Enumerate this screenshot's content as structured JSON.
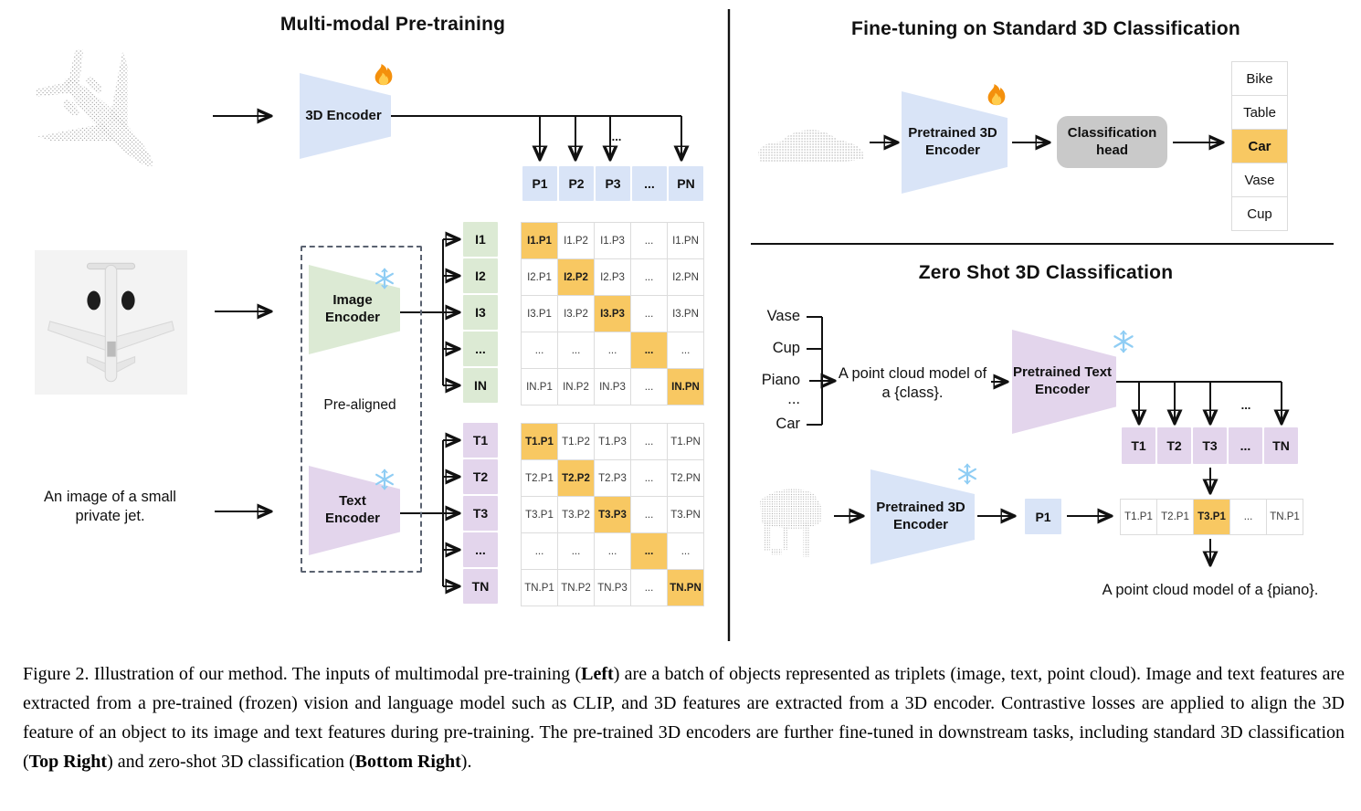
{
  "colors": {
    "blue": "#d9e4f7",
    "green": "#dcead4",
    "purple": "#e3d5ec",
    "orange": "#f8c862",
    "gray": "#c9c9c9",
    "cellborder": "#dcdcdc"
  },
  "left": {
    "title": "Multi-modal Pre-training",
    "encoder_3d_label": "3D Encoder",
    "image_encoder_l1": "Image",
    "image_encoder_l2": "Encoder",
    "text_encoder_l1": "Text",
    "text_encoder_l2": "Encoder",
    "prealigned": "Pre-aligned",
    "jet_caption_l1": "An image of a small",
    "jet_caption_l2": "private jet.",
    "ellipsis": "...",
    "p_row": [
      "P1",
      "P2",
      "P3",
      "...",
      "PN"
    ],
    "i_col": [
      "I1",
      "I2",
      "I3",
      "...",
      "IN"
    ],
    "t_col": [
      "T1",
      "T2",
      "T3",
      "...",
      "TN"
    ],
    "i_matrix": [
      [
        {
          "t": "I1.P1",
          "hl": true
        },
        "I1.P2",
        "I1.P3",
        "...",
        "I1.PN"
      ],
      [
        "I2.P1",
        {
          "t": "I2.P2",
          "hl": true
        },
        "I2.P3",
        "...",
        "I2.PN"
      ],
      [
        "I3.P1",
        "I3.P2",
        {
          "t": "I3.P3",
          "hl": true
        },
        "...",
        "I3.PN"
      ],
      [
        "...",
        "...",
        "...",
        {
          "t": "...",
          "hl": true
        },
        "..."
      ],
      [
        "IN.P1",
        "IN.P2",
        "IN.P3",
        "...",
        {
          "t": "IN.PN",
          "hl": true
        }
      ]
    ],
    "t_matrix": [
      [
        {
          "t": "T1.P1",
          "hl": true
        },
        "T1.P2",
        "T1.P3",
        "...",
        "T1.PN"
      ],
      [
        "T2.P1",
        {
          "t": "T2.P2",
          "hl": true
        },
        "T2.P3",
        "...",
        "T2.PN"
      ],
      [
        "T3.P1",
        "T3.P2",
        {
          "t": "T3.P3",
          "hl": true
        },
        "...",
        "T3.PN"
      ],
      [
        "...",
        "...",
        "...",
        {
          "t": "...",
          "hl": true
        },
        "..."
      ],
      [
        "TN.P1",
        "TN.P2",
        "TN.P3",
        "...",
        {
          "t": "TN.PN",
          "hl": true
        }
      ]
    ]
  },
  "top_right": {
    "title": "Fine-tuning on Standard 3D Classification",
    "encoder_l1": "Pretrained 3D",
    "encoder_l2": "Encoder",
    "head_l1": "Classification",
    "head_l2": "head",
    "classes": [
      "Bike",
      "Table",
      {
        "t": "Car",
        "hl": true
      },
      "Vase",
      "Cup"
    ]
  },
  "bottom_right": {
    "title": "Zero Shot 3D Classification",
    "class_labels": [
      "Vase",
      "Cup",
      "Piano",
      "...",
      "Car"
    ],
    "prompt_l1": "A point cloud model of",
    "prompt_l2": "a {class}.",
    "text_encoder_l1": "Pretrained Text",
    "text_encoder_l2": "Encoder",
    "pc_encoder_l1": "Pretrained 3D",
    "pc_encoder_l2": "Encoder",
    "ellipsis": "...",
    "t_row": [
      "T1",
      "T2",
      "T3",
      "...",
      "TN"
    ],
    "p1_label": "P1",
    "tp_row": [
      "T1.P1",
      "T2.P1",
      {
        "t": "T3.P1",
        "hl": true
      },
      "...",
      "TN.P1"
    ],
    "result_prompt": "A point cloud model of a {piano}."
  },
  "caption": {
    "segments": [
      {
        "t": "Figure 2. Illustration of our method. The inputs of multimodal pre-training ("
      },
      {
        "t": "Left",
        "b": true
      },
      {
        "t": ") are a batch of objects represented as triplets (image, text, point cloud).  Image and text features are extracted from a pre-trained (frozen) vision and language model such as CLIP, and 3D features are extracted from a 3D encoder.  Contrastive losses are applied to align the 3D feature of an object to its image and text features during pre-training.  The pre-trained 3D encoders are further fine-tuned in downstream tasks, including standard 3D classification ("
      },
      {
        "t": "Top Right",
        "b": true
      },
      {
        "t": ") and zero-shot 3D classification ("
      },
      {
        "t": "Bottom Right",
        "b": true
      },
      {
        "t": ")."
      }
    ]
  }
}
